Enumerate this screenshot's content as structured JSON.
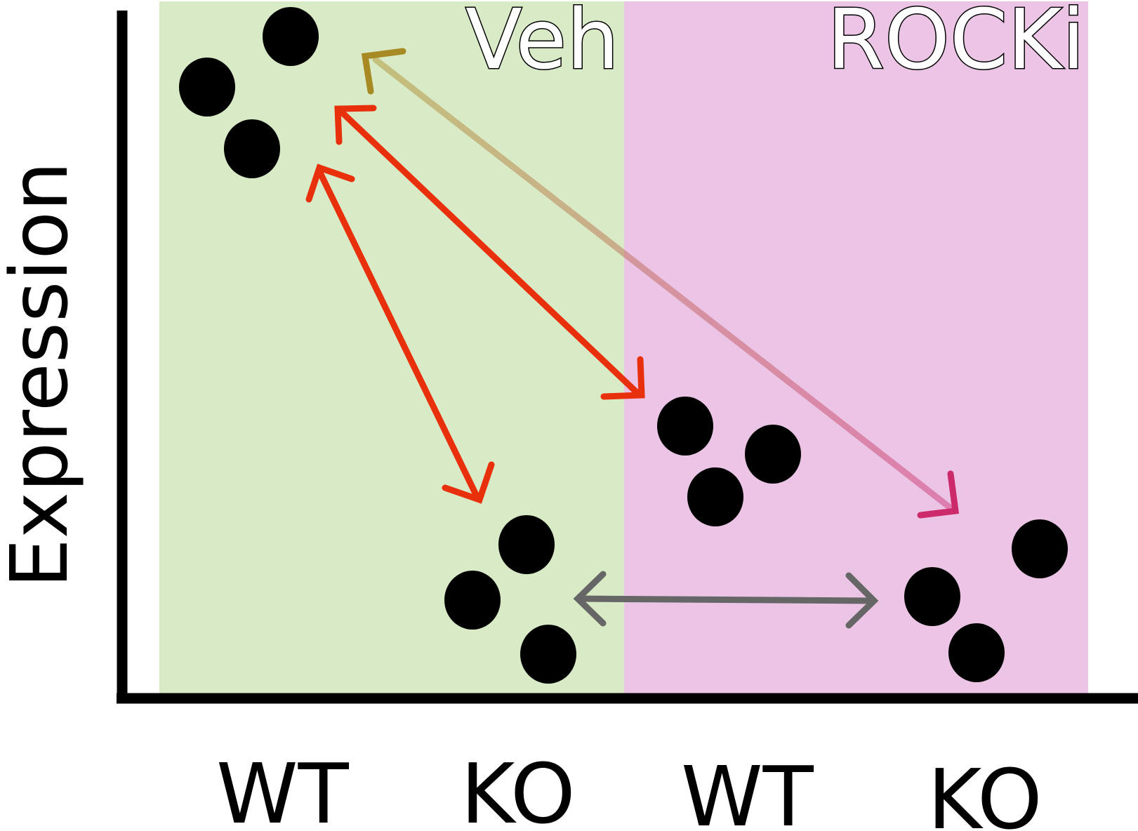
{
  "diagram": {
    "y_axis_label": "Expression",
    "x_tick_labels": [
      "WT",
      "KO",
      "WT",
      "KO"
    ],
    "panels": [
      {
        "label": "Veh",
        "color": "#cfe6b8"
      },
      {
        "label": "ROCKi",
        "color": "#e6b5e0"
      }
    ],
    "groups": [
      {
        "treatment": "Veh",
        "genotype": "WT",
        "points": 3,
        "relative_level": "high"
      },
      {
        "treatment": "Veh",
        "genotype": "KO",
        "points": 3,
        "relative_level": "low"
      },
      {
        "treatment": "ROCKi",
        "genotype": "WT",
        "points": 3,
        "relative_level": "medium"
      },
      {
        "treatment": "ROCKi",
        "genotype": "KO",
        "points": 3,
        "relative_level": "low"
      }
    ],
    "arrows": [
      {
        "from": "Veh WT",
        "to": "Veh KO",
        "color": "#e8300c",
        "style": "double-headed"
      },
      {
        "from": "Veh WT",
        "to": "ROCKi WT",
        "color": "#e8300c",
        "style": "double-headed"
      },
      {
        "from": "Veh WT",
        "to": "ROCKi KO",
        "color": "#a88a24",
        "color_end": "#cc2a6a",
        "style": "double-headed, faded"
      },
      {
        "from": "Veh KO",
        "to": "ROCKi KO",
        "color": "#666666",
        "style": "double-headed"
      }
    ],
    "colors": {
      "axis": "#000000",
      "point": "#000000"
    }
  }
}
